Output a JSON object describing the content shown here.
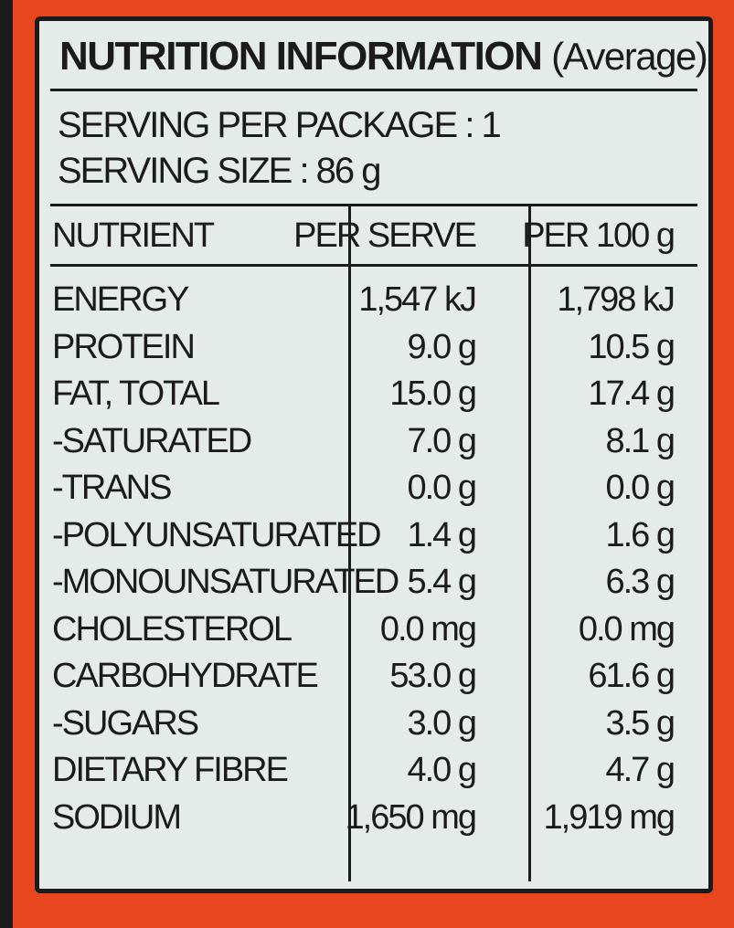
{
  "title": "NUTRITION INFORMATION",
  "title_note": "(Average)",
  "serving": [
    "SERVING PER PACKAGE : 1",
    "SERVING SIZE : 86 g"
  ],
  "table": {
    "header": [
      "NUTRIENT",
      "PER SERVE",
      "PER 100 g"
    ],
    "rows": [
      [
        "ENERGY",
        "1,547 kJ",
        "1,798 kJ"
      ],
      [
        "PROTEIN",
        "9.0 g",
        "10.5 g"
      ],
      [
        "FAT, TOTAL",
        "15.0 g",
        "17.4 g"
      ],
      [
        "-SATURATED",
        "7.0 g",
        "8.1 g"
      ],
      [
        "-TRANS",
        "0.0 g",
        "0.0 g"
      ],
      [
        "-POLYUNSATURATED",
        "1.4 g",
        "1.6 g"
      ],
      [
        "-MONOUNSATURATED",
        "5.4 g",
        "6.3 g"
      ],
      [
        "CHOLESTEROL",
        "0.0 mg",
        "0.0 mg"
      ],
      [
        "CARBOHYDRATE",
        "53.0 g",
        "61.6 g"
      ],
      [
        "-SUGARS",
        "3.0 g",
        "3.5 g"
      ],
      [
        "DIETARY FIBRE",
        "4.0 g",
        "4.7 g"
      ],
      [
        "SODIUM",
        "1,650 mg",
        "1,919 mg"
      ]
    ]
  }
}
